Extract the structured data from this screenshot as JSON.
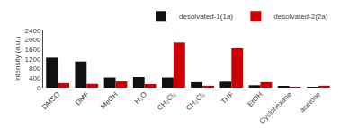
{
  "chart_data": {
    "type": "bar",
    "categories": [
      "DMSO",
      "DMF",
      "MeOH",
      "H₂O",
      "CH₂Cl₂",
      "CH₂Cl₂",
      "THF",
      "EtOH",
      "Cyclohexane",
      "acetone"
    ],
    "series": [
      {
        "name": "desolvated-1(1a)",
        "color": "#111111",
        "values": [
          1260,
          1100,
          430,
          450,
          430,
          230,
          250,
          100,
          70,
          20
        ]
      },
      {
        "name": "desolvated-2(2a)",
        "color": "#cc0000",
        "values": [
          190,
          160,
          260,
          150,
          1900,
          80,
          1650,
          230,
          30,
          80
        ]
      }
    ],
    "ylabel": "Intensity (a.u.)",
    "ylim": [
      0,
      2400
    ],
    "yticks": [
      0,
      400,
      800,
      1200,
      1600,
      2000,
      2400
    ],
    "legend": "upper right",
    "grid": false
  }
}
